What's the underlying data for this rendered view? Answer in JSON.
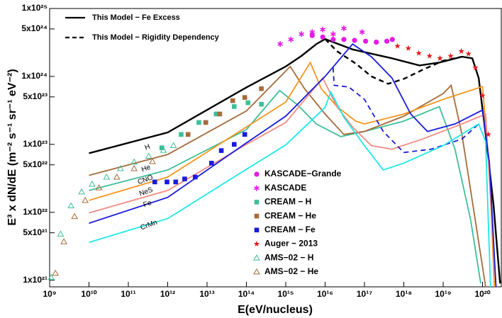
{
  "chart_data": {
    "type": "line",
    "xlabel": "E(eV/nucleus)",
    "ylabel": "E³ x dN/dE (m⁻² s⁻¹ sr⁻¹ eV⁻²)",
    "xscale": "log",
    "yscale": "log",
    "xlim": [
      1000000000.0,
      3e+20
    ],
    "ylim": [
      8e+20,
      1e+25
    ],
    "xticks": [
      {
        "value": 1000000000.0,
        "label": "10⁹"
      },
      {
        "value": 10000000000.0,
        "label": "10¹⁰"
      },
      {
        "value": 100000000000.0,
        "label": "10¹¹"
      },
      {
        "value": 1000000000000.0,
        "label": "10¹²"
      },
      {
        "value": 10000000000000.0,
        "label": "10¹³"
      },
      {
        "value": 100000000000000.0,
        "label": "10¹⁴"
      },
      {
        "value": 1000000000000000.0,
        "label": "10¹⁵"
      },
      {
        "value": 1e+16,
        "label": "10¹⁶"
      },
      {
        "value": 1e+17,
        "label": "10¹⁷"
      },
      {
        "value": 1e+18,
        "label": "10¹⁸"
      },
      {
        "value": 1e+19,
        "label": "10¹⁹"
      },
      {
        "value": 1e+20,
        "label": "10²⁰"
      }
    ],
    "yticks": [
      {
        "value": 1e+21,
        "label": "1x10²¹"
      },
      {
        "value": 5e+21,
        "label": "5x10²¹"
      },
      {
        "value": 1e+22,
        "label": "1x10²²"
      },
      {
        "value": 5e+22,
        "label": "5x10²²"
      },
      {
        "value": 1e+23,
        "label": "1x10²³"
      },
      {
        "value": 5e+23,
        "label": "5x10²³"
      },
      {
        "value": 1e+24,
        "label": "1x10²⁴"
      },
      {
        "value": 5e+24,
        "label": "5x10²⁴"
      },
      {
        "value": 1e+25,
        "label": "1x10²⁵"
      }
    ],
    "series": [
      {
        "name": "This Model − Fe Excess",
        "style": "line",
        "color": "#000000",
        "dash": false,
        "x": [
          10000000000.0,
          1000000000000.0,
          100000000000000.0,
          1000000000000000.0,
          2500000000000000.0,
          6000000000000000.0,
          1e+16,
          5e+16,
          5e+17,
          2.5e+18,
          8e+18,
          3e+19,
          5.5e+19,
          8e+19,
          1.2e+20,
          1.9e+20,
          2.8e+20
        ],
        "values": [
          7.4e+22,
          1.5e+23,
          6.9e+23,
          1.4e+24,
          2e+24,
          3e+24,
          3.55e+24,
          2.5e+24,
          1.85e+24,
          1.45e+24,
          1.6e+24,
          1.95e+24,
          1.85e+24,
          9.5e+23,
          1.4e+23,
          1.3e+22,
          9e+20
        ]
      },
      {
        "name": "This Model − Rigidity Dependency",
        "style": "line",
        "color": "#000000",
        "dash": true,
        "x": [
          1e+16,
          2e+16,
          6e+16,
          1.5e+17,
          4e+17,
          1e+18,
          3e+18,
          1e+19,
          3e+19
        ],
        "values": [
          3.55e+24,
          2.35e+24,
          1.55e+24,
          1e+24,
          7.8e+23,
          9.2e+23,
          1.25e+24,
          1.7e+24,
          1.95e+24
        ]
      },
      {
        "label": "H",
        "style": "line",
        "color": "#3dbf99",
        "dash": false,
        "x": [
          10000000000.0,
          1000000000000.0,
          100000000000000.0,
          700000000000000.0,
          2000000000000000.0,
          6000000000000000.0,
          2.5e+16,
          1e+17,
          1e+18,
          8e+18,
          2e+19,
          5e+19,
          9e+19
        ],
        "values": [
          2.1e+22,
          4.2e+22,
          1.65e+23,
          6.2e+23,
          3.8e+23,
          2e+23,
          1.3e+23,
          1.55e+23,
          2.2e+23,
          3.6e+23,
          8.5e+22,
          7.7e+21,
          9e+20
        ]
      },
      {
        "label": "He",
        "style": "line",
        "color": "#a56b3a",
        "dash": false,
        "x": [
          10000000000.0,
          1000000000000.0,
          100000000000000.0,
          1300000000000000.0,
          3000000000000000.0,
          1e+16,
          3e+16,
          1e+17,
          1e+18,
          1e+19,
          1.6e+19,
          3e+19,
          7e+19,
          1.2e+20
        ],
        "values": [
          3.5e+22,
          7.1e+22,
          3.1e+23,
          1.4e+24,
          6.6e+23,
          2.8e+23,
          1.4e+23,
          1.55e+23,
          2.6e+23,
          5.6e+23,
          7.4e+23,
          1.4e+23,
          6e+21,
          8e+20
        ]
      },
      {
        "label": "CNO",
        "style": "line",
        "color": "#f7941d",
        "dash": false,
        "x": [
          10000000000.0,
          1000000000000.0,
          100000000000000.0,
          1000000000000000.0,
          4200000000000000.0,
          8000000000000000.0,
          2e+16,
          6e+16,
          1e+17,
          1e+18,
          1e+19,
          1e+20,
          1.5e+20,
          2e+20
        ],
        "values": [
          1.5e+22,
          3.3e+22,
          1.8e+23,
          4.2e+23,
          1.6e+24,
          6.6e+23,
          3.6e+23,
          2.2e+23,
          2e+23,
          2.8e+23,
          4.6e+23,
          7.1e+23,
          4.2e+22,
          8e+20
        ]
      },
      {
        "label": "NeS",
        "style": "line",
        "color": "#f28b82",
        "dash": false,
        "x": [
          10000000000.0,
          1000000000000.0,
          100000000000000.0,
          1000000000000000.0,
          8700000000000000.0,
          2e+16,
          5e+16,
          1.5e+17,
          5e+17,
          3e+18,
          3e+19,
          1.2e+20,
          1.6e+20,
          2.2e+20
        ],
        "values": [
          9.8e+21,
          2.1e+22,
          1e+23,
          2.1e+23,
          9.5e+23,
          3.6e+23,
          1.8e+23,
          9.6e+22,
          8.5e+22,
          1.2e+23,
          2e+23,
          2.8e+23,
          1.6e+22,
          8e+20
        ]
      },
      {
        "label": "Fe",
        "style": "line",
        "color": "#1a1adb",
        "dash": false,
        "x": [
          10000000000.0,
          1000000000000.0,
          100000000000000.0,
          1000000000000000.0,
          1e+16,
          5e+16,
          1.5e+17,
          5e+17,
          1.5e+18,
          4e+18,
          2e+19,
          1e+20,
          1.5e+20,
          2.2e+20
        ],
        "values": [
          6.9e+21,
          1.66e+22,
          1.05e+23,
          2.6e+23,
          1e+24,
          3e+24,
          1.95e+24,
          9.5e+23,
          2.8e+23,
          1.55e+23,
          2e+23,
          3.2e+23,
          5.3e+22,
          8e+20
        ]
      },
      {
        "style": "line",
        "color": "#1a1adb",
        "dash": true,
        "x": [
          1.6e+16,
          1.7e+16,
          4e+16,
          1e+17,
          3e+17,
          1e+18,
          5e+18,
          3e+19,
          8e+19
        ],
        "values": [
          1.35e+24,
          7.4e+23,
          7e+23,
          4.6e+23,
          1.55e+23,
          7.6e+22,
          8.5e+22,
          1.2e+23,
          2e+23
        ]
      },
      {
        "label": "CrMn",
        "style": "line",
        "color": "#1ee8e8",
        "dash": false,
        "x": [
          10000000000.0,
          1000000000000.0,
          100000000000000.0,
          1000000000000000.0,
          1e+16,
          1.4e+16,
          3e+16,
          1e+17,
          3e+17,
          1e+18,
          1e+19,
          8e+19,
          1.2e+20,
          1.6e+20
        ],
        "values": [
          3.6e+21,
          8.1e+21,
          4.3e+22,
          9.8e+22,
          3.5e+23,
          5.9e+23,
          2.5e+23,
          9.6e+22,
          4.2e+22,
          5.3e+22,
          9.6e+22,
          2e+23,
          1.1e+23,
          8e+20
        ]
      },
      {
        "name": "KASCADE−Grande",
        "style": "scatter",
        "marker": "circle",
        "color": "#e619e6",
        "x": [
          4700000000000000.0,
          8700000000000000.0,
          1.6e+16,
          3e+16,
          5.6e+16,
          1.07e+17,
          2e+17,
          3.7e+17,
          5.1e+17
        ],
        "values": [
          4e+24,
          3.8e+24,
          3.5e+24,
          3.5e+24,
          3.4e+24,
          3.3e+24,
          3.2e+24,
          3.3e+24,
          3.5e+24
        ]
      },
      {
        "name": "KASCADE",
        "style": "scatter",
        "marker": "asterisk",
        "color": "#e619e6",
        "x": [
          720000000000000.0,
          1350000000000000.0,
          2500000000000000.0,
          4700000000000000.0,
          8700000000000000.0,
          1.6e+16,
          3e+16,
          8.7e+16
        ],
        "values": [
          3e+24,
          3.5e+24,
          4.2e+24,
          4.5e+24,
          4.9e+24,
          4.2e+24,
          5.1e+24,
          4.5e+24
        ]
      },
      {
        "name": "CREAM − H",
        "style": "scatter",
        "marker": "square",
        "color": "#3dbf99",
        "x": [
          710000000000.0,
          2200000000000.0,
          6200000000000.0,
          17000000000000.0,
          49000000000000.0,
          110000000000000.0,
          240000000000000.0
        ],
        "values": [
          8.9e+22,
          1.4e+23,
          2.1e+23,
          2.8e+23,
          3.6e+23,
          4.1e+23,
          3.9e+23
        ]
      },
      {
        "name": "CREAM − He",
        "style": "scatter",
        "marker": "square",
        "color": "#a56b3a",
        "x": [
          3300000000000.0,
          9300000000000.0,
          21000000000000.0,
          45000000000000.0,
          91000000000000.0,
          240000000000000.0
        ],
        "values": [
          1.4e+23,
          2.1e+23,
          2.8e+23,
          4.4e+23,
          4.9e+23,
          6.6e+23
        ]
      },
      {
        "name": "CREAM − Fe",
        "style": "scatter",
        "marker": "square",
        "color": "#1a1adb",
        "x": [
          470000000000.0,
          960000000000.0,
          1600000000000.0,
          2700000000000.0,
          5000000000000.0,
          13000000000000.0,
          23000000000000.0,
          49000000000000.0,
          91000000000000.0
        ],
        "values": [
          2.8e+22,
          2.8e+22,
          2.8e+22,
          3.1e+22,
          3.3e+22,
          5.3e+22,
          8.1e+22,
          1e+23,
          1.4e+23
        ]
      },
      {
        "name": "Auger − 2013",
        "style": "scatter",
        "marker": "star",
        "color": "#e31a1c",
        "x": [
          6.9e+17,
          1.3e+18,
          2.4e+18,
          4.5e+18,
          8.3e+18,
          1.55e+19,
          2.9e+19,
          4.4e+19,
          6.6e+19,
          1e+20,
          1.4e+20
        ],
        "values": [
          2.8e+24,
          2.6e+24,
          2.2e+24,
          2e+24,
          1.85e+24,
          2e+24,
          2.35e+24,
          2.15e+24,
          1.35e+24,
          5.2e+23,
          1.4e+23
        ]
      },
      {
        "name": "AMS−02 − H",
        "style": "scatter",
        "marker": "triangle-open",
        "color": "#3dbf99",
        "x": [
          1100000000.0,
          1900000000.0,
          3500000000.0,
          6500000000.0,
          12000000000.0,
          28000000000.0,
          63000000000.0,
          140000000000.0,
          330000000000.0,
          780000000000.0,
          1400000000000.0
        ],
        "values": [
          1.1e+21,
          4.8e+21,
          1.25e+22,
          2e+22,
          2.6e+22,
          3.3e+22,
          4.4e+22,
          5.5e+22,
          6.7e+22,
          8.2e+22,
          9.6e+22
        ]
      },
      {
        "name": "AMS−02 − He",
        "style": "scatter",
        "marker": "triangle-open",
        "color": "#a56b3a",
        "x": [
          1400000000.0,
          2300000000.0,
          4300000000.0,
          8000000000.0,
          18000000000.0,
          51000000000.0,
          140000000000.0,
          410000000000.0
        ],
        "values": [
          1.27e+21,
          3.7e+21,
          8.7e+21,
          1.5e+22,
          2.3e+22,
          3.3e+22,
          4.4e+22,
          5.6e+22
        ]
      }
    ]
  }
}
